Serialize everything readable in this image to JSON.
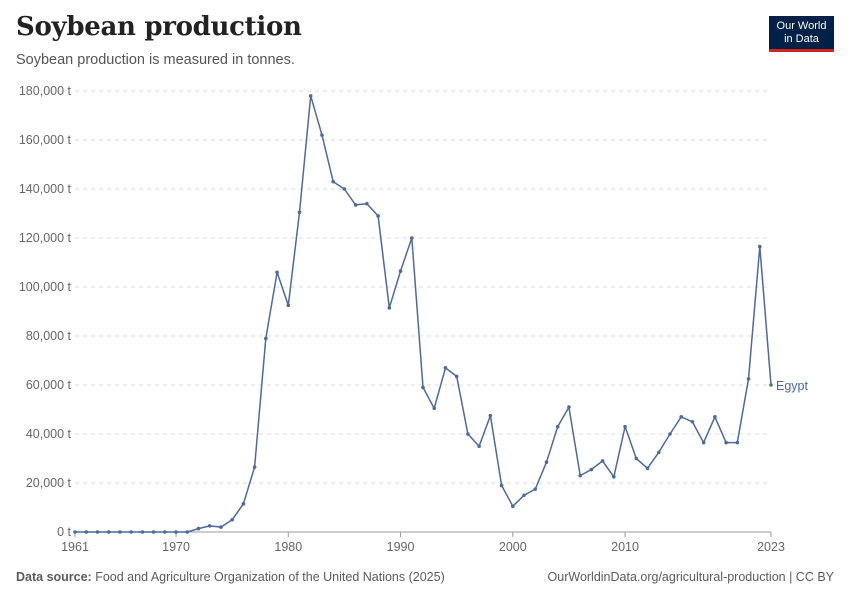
{
  "header": {
    "title": "Soybean production",
    "subtitle": "Soybean production is measured in tonnes.",
    "logo_line1": "Our World",
    "logo_line2": "in Data"
  },
  "footer": {
    "source_label": "Data source:",
    "source_text": "Food and Agriculture Organization of the United Nations (2025)",
    "attribution": "OurWorldinData.org/agricultural-production | CC BY"
  },
  "colors": {
    "series": "#4c6a9c",
    "grid": "#dddddd",
    "axis": "#666666"
  },
  "chart_data": {
    "type": "line",
    "title": "Soybean production",
    "xlabel": "",
    "ylabel": "",
    "xlim": [
      1961,
      2023
    ],
    "ylim": [
      0,
      180000
    ],
    "y_ticks": [
      0,
      20000,
      40000,
      60000,
      80000,
      100000,
      120000,
      140000,
      160000,
      180000
    ],
    "y_tick_labels": [
      "0 t",
      "20,000 t",
      "40,000 t",
      "60,000 t",
      "80,000 t",
      "100,000 t",
      "120,000 t",
      "140,000 t",
      "160,000 t",
      "180,000 t"
    ],
    "x_ticks": [
      1961,
      1970,
      1980,
      1990,
      2000,
      2010,
      2023
    ],
    "x_tick_labels": [
      "1961",
      "1970",
      "1980",
      "1990",
      "2000",
      "2010",
      "2023"
    ],
    "series": [
      {
        "name": "Egypt",
        "x": [
          1961,
          1962,
          1963,
          1964,
          1965,
          1966,
          1967,
          1968,
          1969,
          1970,
          1971,
          1972,
          1973,
          1974,
          1975,
          1976,
          1977,
          1978,
          1979,
          1980,
          1981,
          1982,
          1983,
          1984,
          1985,
          1986,
          1987,
          1988,
          1989,
          1990,
          1991,
          1992,
          1993,
          1994,
          1995,
          1996,
          1997,
          1998,
          1999,
          2000,
          2001,
          2002,
          2003,
          2004,
          2005,
          2006,
          2007,
          2008,
          2009,
          2010,
          2011,
          2012,
          2013,
          2014,
          2015,
          2016,
          2017,
          2018,
          2019,
          2020,
          2021,
          2022,
          2023
        ],
        "values": [
          0,
          0,
          0,
          0,
          0,
          0,
          0,
          0,
          0,
          0,
          0,
          1400,
          2500,
          2000,
          5000,
          11500,
          26500,
          79000,
          106000,
          92500,
          130500,
          178000,
          162000,
          143000,
          140000,
          133500,
          134000,
          129000,
          91500,
          106500,
          120000,
          59000,
          50500,
          67000,
          63500,
          40000,
          35000,
          47500,
          19000,
          10500,
          15000,
          17500,
          28500,
          43000,
          51000,
          23000,
          25500,
          29000,
          22500,
          43000,
          30000,
          26000,
          32500,
          40000,
          47000,
          45000,
          36500,
          47000,
          36500,
          36500,
          62500,
          116500,
          60000
        ]
      }
    ]
  }
}
